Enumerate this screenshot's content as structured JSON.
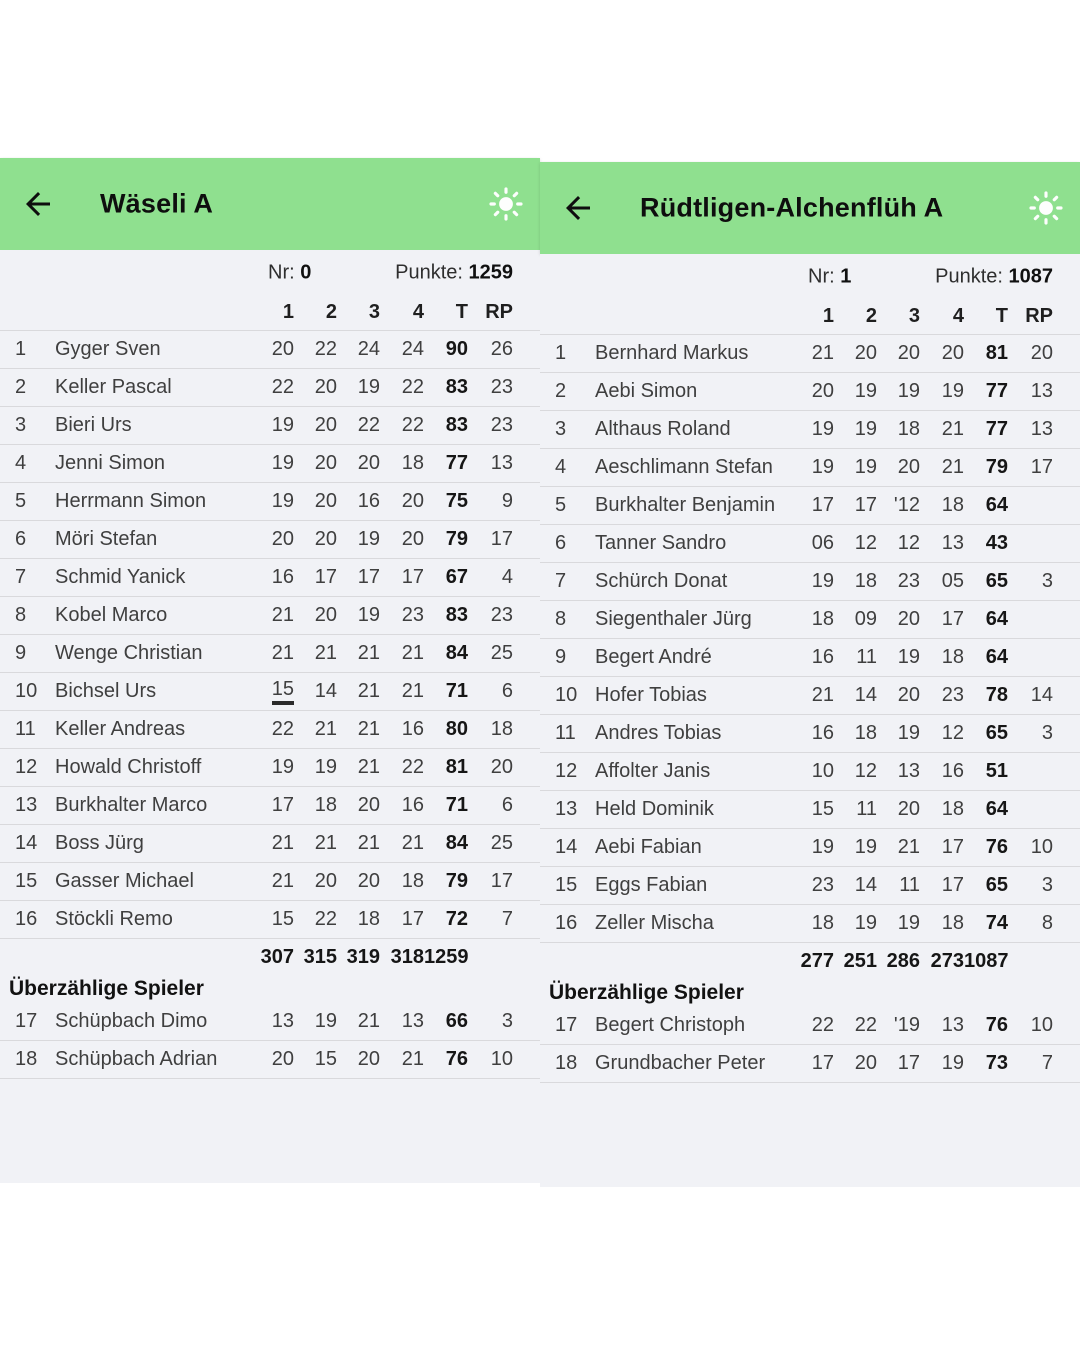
{
  "icons": {
    "back": "arrow-left",
    "brightness": "sun"
  },
  "colors": {
    "appbar_green": "#8fe08f",
    "content_background": "#f1f2f6",
    "divider": "#d9d9dc"
  },
  "panels": [
    {
      "title": "Wäseli A",
      "nr": {
        "label": "Nr:",
        "value": "0"
      },
      "punkte": {
        "label": "Punkte:",
        "value": "1259"
      },
      "columns": [
        "1",
        "2",
        "3",
        "4",
        "T",
        "RP"
      ],
      "players": [
        {
          "rank": "1",
          "name": "Gyger Sven",
          "scores": [
            "20",
            "22",
            "24",
            "24"
          ],
          "total": "90",
          "rp": "26"
        },
        {
          "rank": "2",
          "name": "Keller Pascal",
          "scores": [
            "22",
            "20",
            "19",
            "22"
          ],
          "total": "83",
          "rp": "23"
        },
        {
          "rank": "3",
          "name": "Bieri Urs",
          "scores": [
            "19",
            "20",
            "22",
            "22"
          ],
          "total": "83",
          "rp": "23"
        },
        {
          "rank": "4",
          "name": "Jenni Simon",
          "scores": [
            "19",
            "20",
            "20",
            "18"
          ],
          "total": "77",
          "rp": "13"
        },
        {
          "rank": "5",
          "name": "Herrmann Simon",
          "scores": [
            "19",
            "20",
            "16",
            "20"
          ],
          "total": "75",
          "rp": "9"
        },
        {
          "rank": "6",
          "name": "Möri Stefan",
          "scores": [
            "20",
            "20",
            "19",
            "20"
          ],
          "total": "79",
          "rp": "17"
        },
        {
          "rank": "7",
          "name": "Schmid Yanick",
          "scores": [
            "16",
            "17",
            "17",
            "17"
          ],
          "total": "67",
          "rp": "4"
        },
        {
          "rank": "8",
          "name": "Kobel Marco",
          "scores": [
            "21",
            "20",
            "19",
            "23"
          ],
          "total": "83",
          "rp": "23"
        },
        {
          "rank": "9",
          "name": "Wenge Christian",
          "scores": [
            "21",
            "21",
            "21",
            "21"
          ],
          "total": "84",
          "rp": "25"
        },
        {
          "rank": "10",
          "name": "Bichsel Urs",
          "scores": [
            "15",
            "14",
            "21",
            "21"
          ],
          "total": "71",
          "rp": "6",
          "underlined_score_index": 0
        },
        {
          "rank": "11",
          "name": "Keller Andreas",
          "scores": [
            "22",
            "21",
            "21",
            "16"
          ],
          "total": "80",
          "rp": "18"
        },
        {
          "rank": "12",
          "name": "Howald Christoff",
          "scores": [
            "19",
            "19",
            "21",
            "22"
          ],
          "total": "81",
          "rp": "20"
        },
        {
          "rank": "13",
          "name": "Burkhalter Marco",
          "scores": [
            "17",
            "18",
            "20",
            "16"
          ],
          "total": "71",
          "rp": "6"
        },
        {
          "rank": "14",
          "name": "Boss Jürg",
          "scores": [
            "21",
            "21",
            "21",
            "21"
          ],
          "total": "84",
          "rp": "25"
        },
        {
          "rank": "15",
          "name": "Gasser Michael",
          "scores": [
            "21",
            "20",
            "20",
            "18"
          ],
          "total": "79",
          "rp": "17"
        },
        {
          "rank": "16",
          "name": "Stöckli Remo",
          "scores": [
            "15",
            "22",
            "18",
            "17"
          ],
          "total": "72",
          "rp": "7"
        }
      ],
      "totals": {
        "scores": [
          "307",
          "315",
          "319",
          "318"
        ],
        "total": "1259"
      },
      "overflow_heading": "Überzählige Spieler",
      "overflow_players": [
        {
          "rank": "17",
          "name": "Schüpbach Dimo",
          "scores": [
            "13",
            "19",
            "21",
            "13"
          ],
          "total": "66",
          "rp": "3"
        },
        {
          "rank": "18",
          "name": "Schüpbach Adrian",
          "scores": [
            "20",
            "15",
            "20",
            "21"
          ],
          "total": "76",
          "rp": "10"
        }
      ]
    },
    {
      "title": "Rüdtligen-Alchenflüh A",
      "nr": {
        "label": "Nr:",
        "value": "1"
      },
      "punkte": {
        "label": "Punkte:",
        "value": "1087"
      },
      "columns": [
        "1",
        "2",
        "3",
        "4",
        "T",
        "RP"
      ],
      "players": [
        {
          "rank": "1",
          "name": "Bernhard Markus",
          "scores": [
            "21",
            "20",
            "20",
            "20"
          ],
          "total": "81",
          "rp": "20"
        },
        {
          "rank": "2",
          "name": "Aebi Simon",
          "scores": [
            "20",
            "19",
            "19",
            "19"
          ],
          "total": "77",
          "rp": "13"
        },
        {
          "rank": "3",
          "name": "Althaus Roland",
          "scores": [
            "19",
            "19",
            "18",
            "21"
          ],
          "total": "77",
          "rp": "13"
        },
        {
          "rank": "4",
          "name": "Aeschlimann Stefan",
          "scores": [
            "19",
            "19",
            "20",
            "21"
          ],
          "total": "79",
          "rp": "17"
        },
        {
          "rank": "5",
          "name": "Burkhalter Benjamin",
          "scores": [
            "17",
            "17",
            "'12",
            "18"
          ],
          "total": "64",
          "rp": ""
        },
        {
          "rank": "6",
          "name": "Tanner Sandro",
          "scores": [
            "06",
            "12",
            "12",
            "13"
          ],
          "total": "43",
          "rp": ""
        },
        {
          "rank": "7",
          "name": "Schürch Donat",
          "scores": [
            "19",
            "18",
            "23",
            "05"
          ],
          "total": "65",
          "rp": "3"
        },
        {
          "rank": "8",
          "name": "Siegenthaler Jürg",
          "scores": [
            "18",
            "09",
            "20",
            "17"
          ],
          "total": "64",
          "rp": ""
        },
        {
          "rank": "9",
          "name": "Begert André",
          "scores": [
            "16",
            "11",
            "19",
            "18"
          ],
          "total": "64",
          "rp": ""
        },
        {
          "rank": "10",
          "name": "Hofer Tobias",
          "scores": [
            "21",
            "14",
            "20",
            "23"
          ],
          "total": "78",
          "rp": "14"
        },
        {
          "rank": "11",
          "name": "Andres Tobias",
          "scores": [
            "16",
            "18",
            "19",
            "12"
          ],
          "total": "65",
          "rp": "3"
        },
        {
          "rank": "12",
          "name": "Affolter Janis",
          "scores": [
            "10",
            "12",
            "13",
            "16"
          ],
          "total": "51",
          "rp": ""
        },
        {
          "rank": "13",
          "name": "Held Dominik",
          "scores": [
            "15",
            "11",
            "20",
            "18"
          ],
          "total": "64",
          "rp": ""
        },
        {
          "rank": "14",
          "name": "Aebi Fabian",
          "scores": [
            "19",
            "19",
            "21",
            "17"
          ],
          "total": "76",
          "rp": "10"
        },
        {
          "rank": "15",
          "name": "Eggs Fabian",
          "scores": [
            "23",
            "14",
            "11",
            "17"
          ],
          "total": "65",
          "rp": "3"
        },
        {
          "rank": "16",
          "name": "Zeller Mischa",
          "scores": [
            "18",
            "19",
            "19",
            "18"
          ],
          "total": "74",
          "rp": "8"
        }
      ],
      "totals": {
        "scores": [
          "277",
          "251",
          "286",
          "273"
        ],
        "total": "1087"
      },
      "overflow_heading": "Überzählige Spieler",
      "overflow_players": [
        {
          "rank": "17",
          "name": "Begert Christoph",
          "scores": [
            "22",
            "22",
            "'19",
            "13"
          ],
          "total": "76",
          "rp": "10"
        },
        {
          "rank": "18",
          "name": "Grundbacher Peter",
          "scores": [
            "17",
            "20",
            "17",
            "19"
          ],
          "total": "73",
          "rp": "7"
        }
      ]
    }
  ]
}
